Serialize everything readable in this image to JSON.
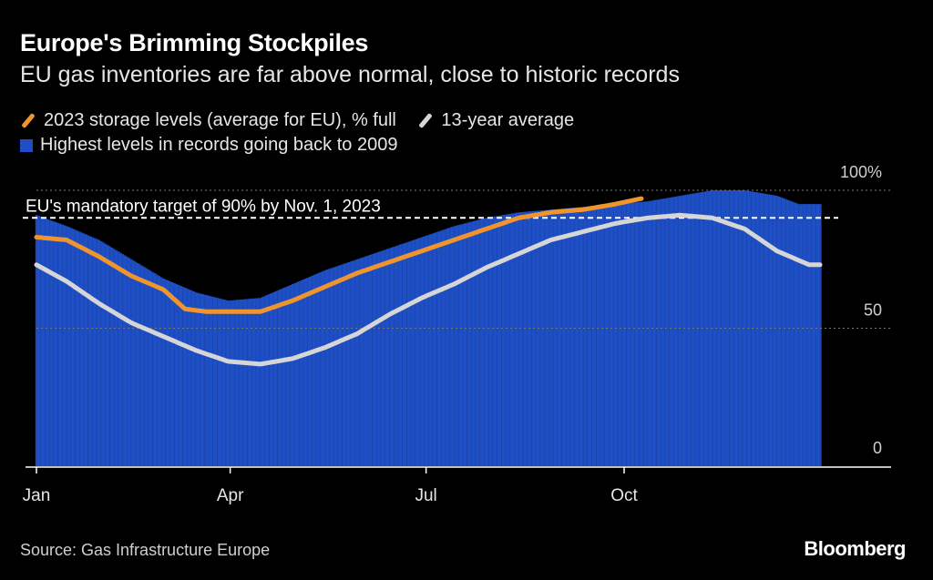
{
  "header": {
    "title": "Europe's Brimming Stockpiles",
    "subtitle": "EU gas inventories are far above normal, close to historic records"
  },
  "legend": {
    "series_2023": "2023 storage levels (average for EU), % full",
    "series_avg": "13-year average",
    "series_max": "Highest levels in records going back to 2009"
  },
  "annotation": "EU's mandatory target of 90% by Nov. 1, 2023",
  "footer": {
    "source": "Source: Gas Infrastructure Europe",
    "logo": "Bloomberg"
  },
  "colors": {
    "max": "#1f4fc4",
    "y2023": "#f0952e",
    "avg": "#d6d6d6",
    "target": "#ffffff",
    "grid": "#777777"
  },
  "chart_data": {
    "type": "area",
    "x_unit": "day of year",
    "xlim": [
      1,
      366
    ],
    "ylim": [
      0,
      100
    ],
    "y_ticks": [
      {
        "value": 0,
        "label": "0"
      },
      {
        "value": 50,
        "label": "50"
      },
      {
        "value": 100,
        "label": "100%"
      }
    ],
    "x_ticks": [
      {
        "value": 1,
        "label": "Jan"
      },
      {
        "value": 91,
        "label": "Apr"
      },
      {
        "value": 182,
        "label": "Jul"
      },
      {
        "value": 274,
        "label": "Oct"
      }
    ],
    "target": {
      "value": 90
    },
    "series": [
      {
        "name": "Highest levels in records going back to 2009",
        "style": "bars",
        "points": [
          [
            1,
            91
          ],
          [
            15,
            87
          ],
          [
            30,
            82
          ],
          [
            45,
            75
          ],
          [
            60,
            68
          ],
          [
            75,
            63
          ],
          [
            90,
            60
          ],
          [
            105,
            61
          ],
          [
            120,
            66
          ],
          [
            135,
            71
          ],
          [
            150,
            75
          ],
          [
            165,
            79
          ],
          [
            180,
            83
          ],
          [
            195,
            87
          ],
          [
            210,
            90
          ],
          [
            225,
            92
          ],
          [
            240,
            93
          ],
          [
            255,
            94
          ],
          [
            270,
            95
          ],
          [
            285,
            96
          ],
          [
            300,
            98
          ],
          [
            315,
            100
          ],
          [
            330,
            100
          ],
          [
            345,
            98
          ],
          [
            355,
            95
          ],
          [
            365,
            95
          ]
        ]
      },
      {
        "name": "2023 storage levels (average for EU), % full",
        "style": "line",
        "points": [
          [
            1,
            83
          ],
          [
            15,
            82
          ],
          [
            30,
            76
          ],
          [
            45,
            69
          ],
          [
            60,
            64
          ],
          [
            70,
            57
          ],
          [
            80,
            56
          ],
          [
            95,
            56
          ],
          [
            105,
            56
          ],
          [
            120,
            60
          ],
          [
            135,
            65
          ],
          [
            150,
            70
          ],
          [
            165,
            74
          ],
          [
            180,
            78
          ],
          [
            195,
            82
          ],
          [
            210,
            86
          ],
          [
            225,
            90
          ],
          [
            240,
            92
          ],
          [
            255,
            93
          ],
          [
            270,
            95
          ],
          [
            282,
            97
          ]
        ]
      },
      {
        "name": "13-year average",
        "style": "line",
        "points": [
          [
            1,
            73
          ],
          [
            15,
            67
          ],
          [
            30,
            59
          ],
          [
            45,
            52
          ],
          [
            60,
            47
          ],
          [
            75,
            42
          ],
          [
            90,
            38
          ],
          [
            105,
            37
          ],
          [
            120,
            39
          ],
          [
            135,
            43
          ],
          [
            150,
            48
          ],
          [
            165,
            55
          ],
          [
            180,
            61
          ],
          [
            195,
            66
          ],
          [
            210,
            72
          ],
          [
            225,
            77
          ],
          [
            240,
            82
          ],
          [
            255,
            85
          ],
          [
            270,
            88
          ],
          [
            285,
            90
          ],
          [
            300,
            91
          ],
          [
            315,
            90
          ],
          [
            330,
            86
          ],
          [
            345,
            78
          ],
          [
            360,
            73
          ],
          [
            365,
            73
          ]
        ]
      }
    ]
  }
}
